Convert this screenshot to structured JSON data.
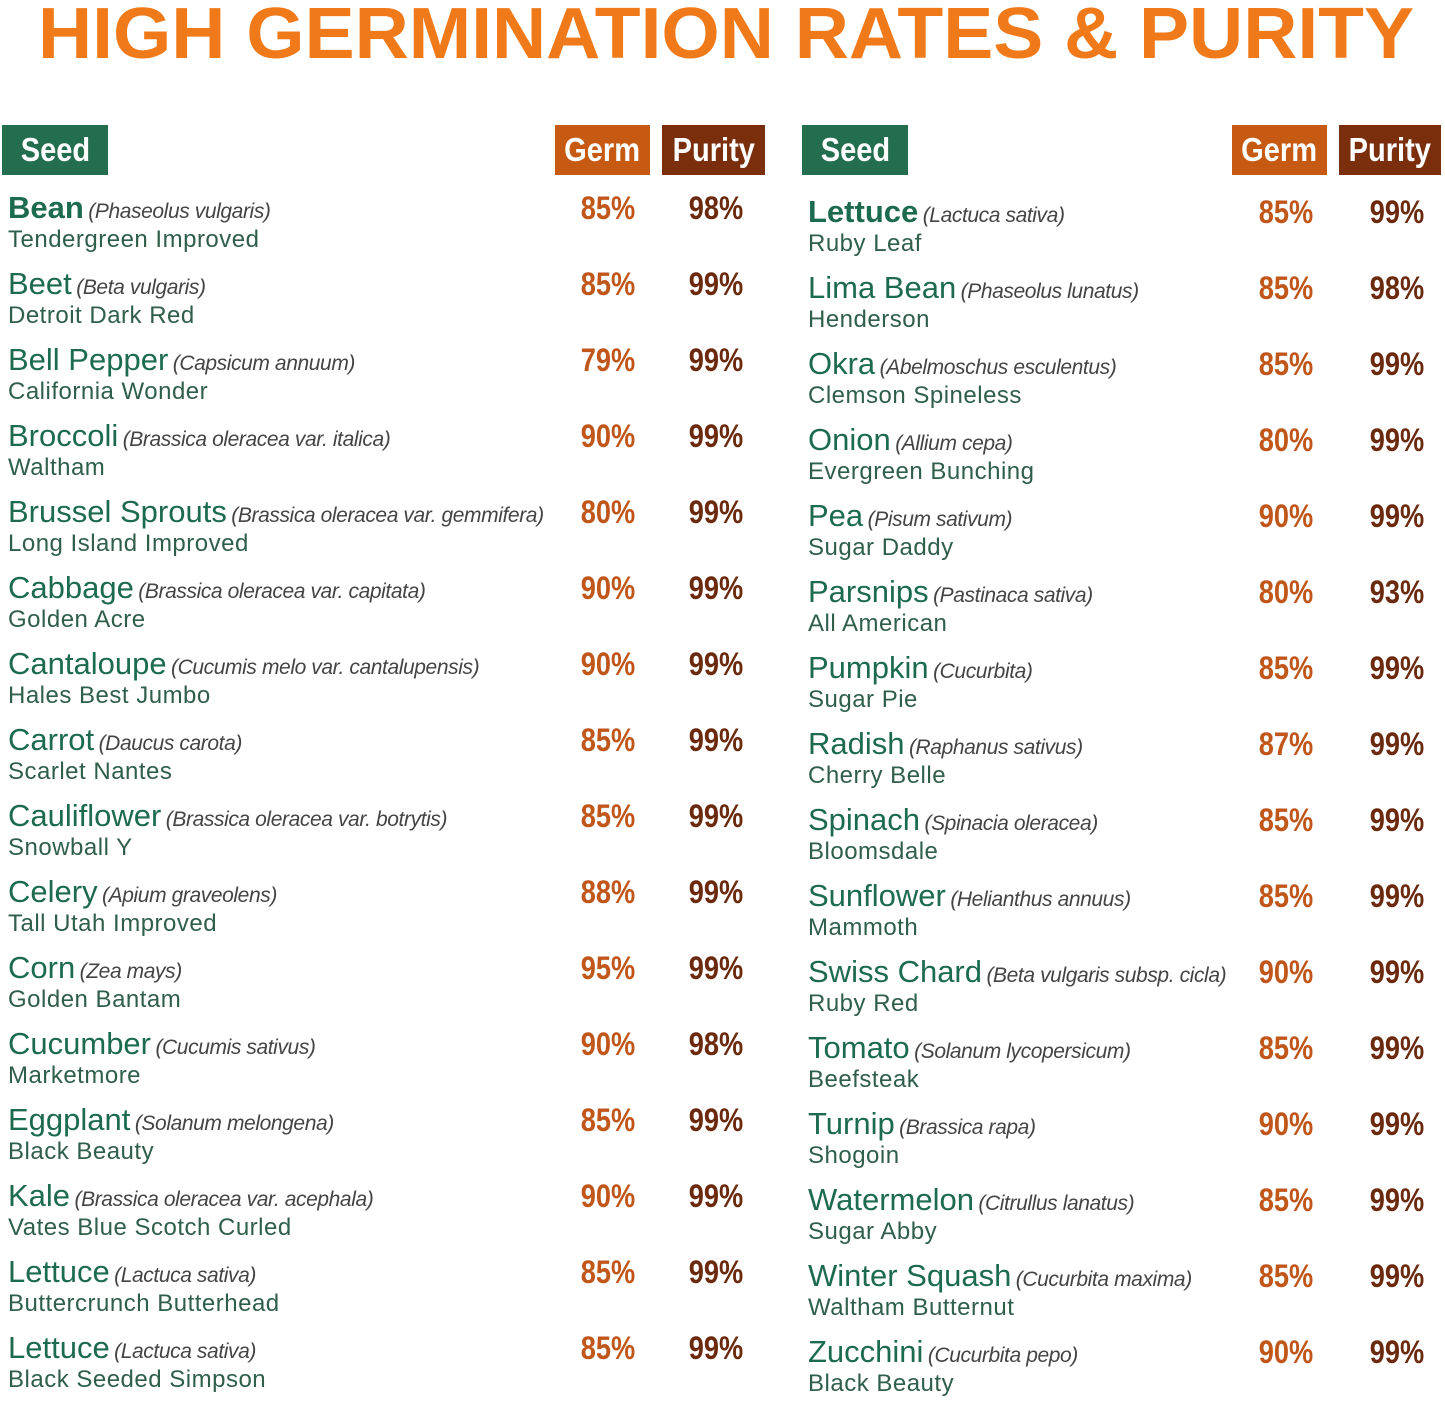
{
  "title": "HIGH GERMINATION RATES & PURITY",
  "tables": [
    {
      "headers": {
        "seed": "Seed",
        "germ": "Germ",
        "purity": "Purity"
      },
      "rows": [
        [
          "Bean",
          "(Phaseolus vulgaris)",
          "Tendergreen Improved",
          "85%",
          "98%"
        ],
        [
          "Beet",
          "(Beta vulgaris)",
          "Detroit Dark Red",
          "85%",
          "99%"
        ],
        [
          "Bell Pepper",
          "(Capsicum annuum)",
          "California Wonder",
          "79%",
          "99%"
        ],
        [
          "Broccoli",
          "(Brassica oleracea var. italica)",
          "Waltham",
          "90%",
          "99%"
        ],
        [
          "Brussel Sprouts",
          "(Brassica oleracea var. gemmifera)",
          "Long Island Improved",
          "80%",
          "99%"
        ],
        [
          "Cabbage",
          "(Brassica oleracea var. capitata)",
          "Golden Acre",
          "90%",
          "99%"
        ],
        [
          "Cantaloupe",
          "(Cucumis melo var. cantalupensis)",
          "Hales Best Jumbo",
          "90%",
          "99%"
        ],
        [
          "Carrot",
          "(Daucus carota)",
          "Scarlet Nantes",
          "85%",
          "99%"
        ],
        [
          "Cauliflower",
          "(Brassica oleracea var. botrytis)",
          "Snowball Y",
          "85%",
          "99%"
        ],
        [
          "Celery",
          "(Apium graveolens)",
          "Tall Utah Improved",
          "88%",
          "99%"
        ],
        [
          "Corn",
          "(Zea mays)",
          "Golden Bantam",
          "95%",
          "99%"
        ],
        [
          "Cucumber",
          "(Cucumis sativus)",
          "Marketmore",
          "90%",
          "98%"
        ],
        [
          "Eggplant",
          "(Solanum melongena)",
          "Black Beauty",
          "85%",
          "99%"
        ],
        [
          "Kale",
          "(Brassica oleracea var. acephala)",
          "Vates Blue Scotch Curled",
          "90%",
          "99%"
        ],
        [
          "Lettuce",
          "(Lactuca sativa)",
          "Buttercrunch Butterhead",
          "85%",
          "99%"
        ],
        [
          "Lettuce",
          "(Lactuca sativa)",
          "Black Seeded Simpson",
          "85%",
          "99%"
        ]
      ]
    },
    {
      "headers": {
        "seed": "Seed",
        "germ": "Germ",
        "purity": "Purity"
      },
      "rows": [
        [
          "Lettuce",
          "(Lactuca sativa)",
          "Ruby Leaf",
          "85%",
          "99%"
        ],
        [
          "Lima Bean",
          "(Phaseolus lunatus)",
          "Henderson",
          "85%",
          "98%"
        ],
        [
          "Okra",
          "(Abelmoschus esculentus)",
          "Clemson Spineless",
          "85%",
          "99%"
        ],
        [
          "Onion",
          "(Allium cepa)",
          "Evergreen Bunching",
          "80%",
          "99%"
        ],
        [
          "Pea",
          "(Pisum sativum)",
          "Sugar Daddy",
          "90%",
          "99%"
        ],
        [
          "Parsnips",
          "(Pastinaca sativa)",
          "All American",
          "80%",
          "93%"
        ],
        [
          "Pumpkin",
          "(Cucurbita)",
          "Sugar Pie",
          "85%",
          "99%"
        ],
        [
          "Radish",
          "(Raphanus sativus)",
          "Cherry Belle",
          "87%",
          "99%"
        ],
        [
          "Spinach",
          "(Spinacia oleracea)",
          "Bloomsdale",
          "85%",
          "99%"
        ],
        [
          "Sunflower",
          "(Helianthus annuus)",
          "Mammoth",
          "85%",
          "99%"
        ],
        [
          "Swiss Chard",
          "(Beta vulgaris subsp. cicla)",
          "Ruby Red",
          "90%",
          "99%"
        ],
        [
          "Tomato",
          "(Solanum lycopersicum)",
          "Beefsteak",
          "85%",
          "99%"
        ],
        [
          "Turnip",
          "(Brassica rapa)",
          "Shogoin",
          "90%",
          "99%"
        ],
        [
          "Watermelon",
          "(Citrullus lanatus)",
          "Sugar Abby",
          "85%",
          "99%"
        ],
        [
          "Winter Squash",
          "(Cucurbita maxima)",
          "Waltham Butternut",
          "85%",
          "99%"
        ],
        [
          "Zucchini",
          "(Cucurbita pepo)",
          "Black Beauty",
          "90%",
          "99%"
        ]
      ]
    }
  ]
}
